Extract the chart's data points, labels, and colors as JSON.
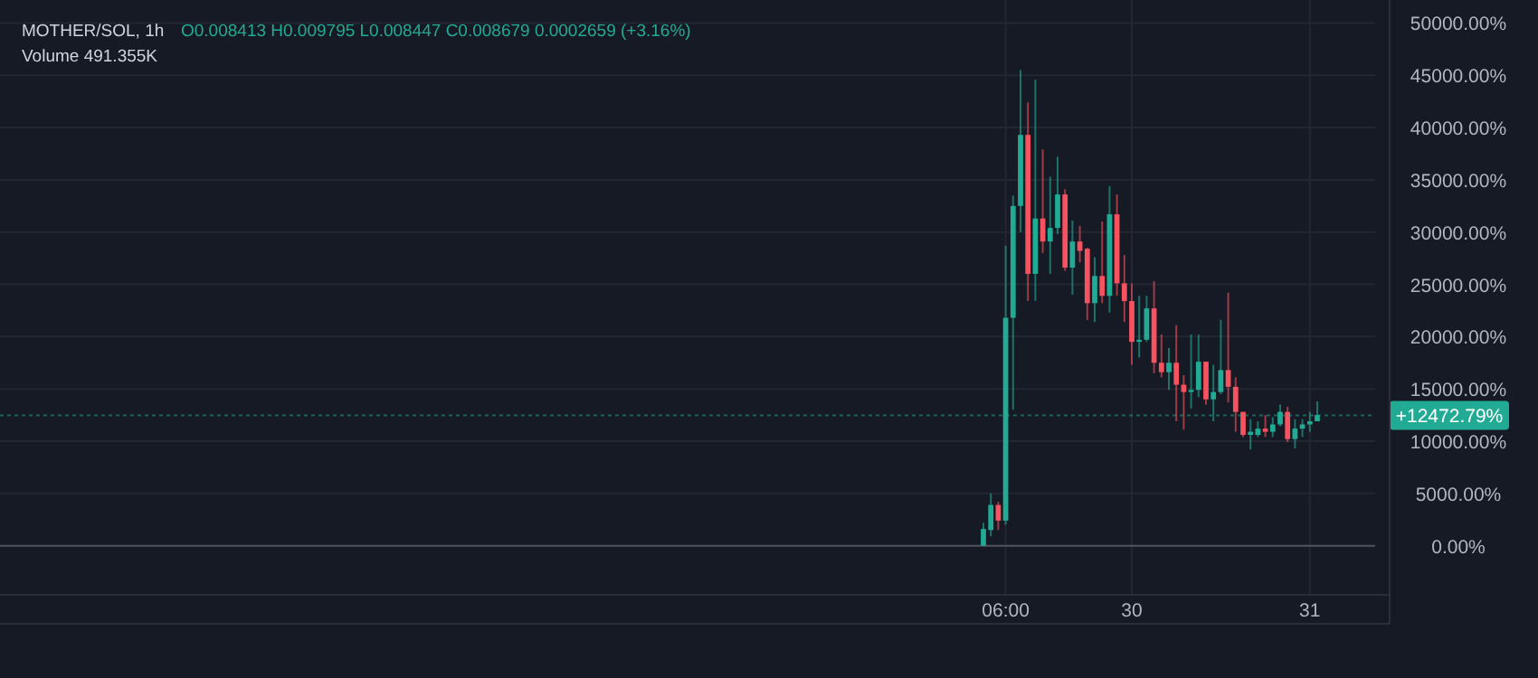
{
  "chart_data": {
    "type": "candlestick",
    "title": "MOTHER/SOL, 1h",
    "subtitle": "O0.008413 H0.009795 L0.008447 C0.008679 0.0002659 (+3.16%)",
    "annotations": [
      "Volume 491.355K"
    ],
    "categories": [
      null,
      null,
      null,
      "06:00",
      null,
      null,
      null,
      null,
      null,
      null,
      null,
      null,
      null,
      null,
      null,
      null,
      null,
      null,
      null,
      null,
      "30",
      null,
      null,
      null,
      null,
      null,
      null,
      null,
      null,
      null,
      null,
      null,
      null,
      null,
      null,
      null,
      null,
      null,
      null,
      null,
      null,
      null,
      null,
      null,
      "31",
      null
    ],
    "ohlc": [
      [
        0,
        2200,
        0,
        1600
      ],
      [
        1500,
        5000,
        900,
        3900
      ],
      [
        3900,
        4200,
        1500,
        2400
      ],
      [
        2400,
        28700,
        2000,
        21800
      ],
      [
        21800,
        33500,
        13000,
        32500
      ],
      [
        32500,
        45500,
        30000,
        39300
      ],
      [
        39300,
        42400,
        23400,
        26000
      ],
      [
        26000,
        44600,
        23400,
        31300
      ],
      [
        31300,
        37900,
        28000,
        29100
      ],
      [
        29100,
        35300,
        26000,
        30400
      ],
      [
        30400,
        37200,
        29800,
        33600
      ],
      [
        33600,
        34100,
        26300,
        26600
      ],
      [
        26600,
        31100,
        24000,
        29100
      ],
      [
        29100,
        30600,
        27100,
        28200
      ],
      [
        28400,
        28500,
        21600,
        23200
      ],
      [
        23200,
        27600,
        21400,
        25800
      ],
      [
        25800,
        31000,
        23200,
        23900
      ],
      [
        23900,
        34400,
        22300,
        31700
      ],
      [
        31700,
        33600,
        23900,
        25100
      ],
      [
        25100,
        27800,
        21400,
        23400
      ],
      [
        23400,
        25100,
        17300,
        19500
      ],
      [
        19500,
        23900,
        18000,
        19700
      ],
      [
        19700,
        23900,
        19500,
        22700
      ],
      [
        22700,
        25300,
        16500,
        17500
      ],
      [
        17500,
        20200,
        16100,
        16600
      ],
      [
        16600,
        18900,
        14900,
        17500
      ],
      [
        17500,
        21100,
        11900,
        15400
      ],
      [
        15400,
        16300,
        11100,
        14700
      ],
      [
        14700,
        20200,
        13100,
        14900
      ],
      [
        14900,
        20200,
        14200,
        17600
      ],
      [
        17600,
        17600,
        13500,
        14000
      ],
      [
        14000,
        17300,
        11900,
        14700
      ],
      [
        14700,
        21600,
        14500,
        16800
      ],
      [
        16800,
        24200,
        13700,
        15200
      ],
      [
        15200,
        16100,
        10900,
        12800
      ],
      [
        12800,
        12800,
        10400,
        10600
      ],
      [
        10600,
        12100,
        9200,
        10900
      ],
      [
        10600,
        11900,
        10400,
        11200
      ],
      [
        11200,
        12500,
        10400,
        10900
      ],
      [
        10900,
        12300,
        10400,
        11600
      ],
      [
        11600,
        13500,
        11400,
        12800
      ],
      [
        12800,
        13300,
        9900,
        10200
      ],
      [
        10200,
        12100,
        9300,
        11200
      ],
      [
        11200,
        12100,
        10400,
        11600
      ],
      [
        11600,
        12800,
        10900,
        11900
      ],
      [
        11900,
        13800,
        11900,
        12500
      ]
    ],
    "colors": [
      "#22ab94",
      "#22ab94",
      "#f7525f",
      "#22ab94",
      "#22ab94",
      "#22ab94",
      "#f7525f",
      "#22ab94",
      "#f7525f",
      "#22ab94",
      "#22ab94",
      "#f7525f",
      "#22ab94",
      "#f7525f",
      "#f7525f",
      "#22ab94",
      "#f7525f",
      "#22ab94",
      "#f7525f",
      "#f7525f",
      "#f7525f",
      "#22ab94",
      "#22ab94",
      "#f7525f",
      "#f7525f",
      "#22ab94",
      "#f7525f",
      "#f7525f",
      "#22ab94",
      "#22ab94",
      "#f7525f",
      "#22ab94",
      "#22ab94",
      "#f7525f",
      "#f7525f",
      "#f7525f",
      "#22ab94",
      "#22ab94",
      "#f7525f",
      "#22ab94",
      "#22ab94",
      "#f7525f",
      "#22ab94",
      "#22ab94",
      "#22ab94",
      "#22ab94"
    ],
    "ylim": [
      -4700,
      52200
    ],
    "yticks": [
      {
        "value": 0,
        "label": "0.00%"
      },
      {
        "value": 5000,
        "label": "5000.00%"
      },
      {
        "value": 10000,
        "label": "10000.00%"
      },
      {
        "value": 15000,
        "label": "15000.00%"
      },
      {
        "value": 20000,
        "label": "20000.00%"
      },
      {
        "value": 25000,
        "label": "25000.00%"
      },
      {
        "value": 30000,
        "label": "30000.00%"
      },
      {
        "value": 35000,
        "label": "35000.00%"
      },
      {
        "value": 40000,
        "label": "40000.00%"
      },
      {
        "value": 45000,
        "label": "45000.00%"
      },
      {
        "value": 50000,
        "label": "50000.00%"
      }
    ],
    "ref_lines": [
      {
        "axis": "y",
        "value": 12472.79,
        "label": "+12472.79%",
        "color": "#22ab94",
        "line_style": "dashed"
      }
    ],
    "grid": true
  }
}
